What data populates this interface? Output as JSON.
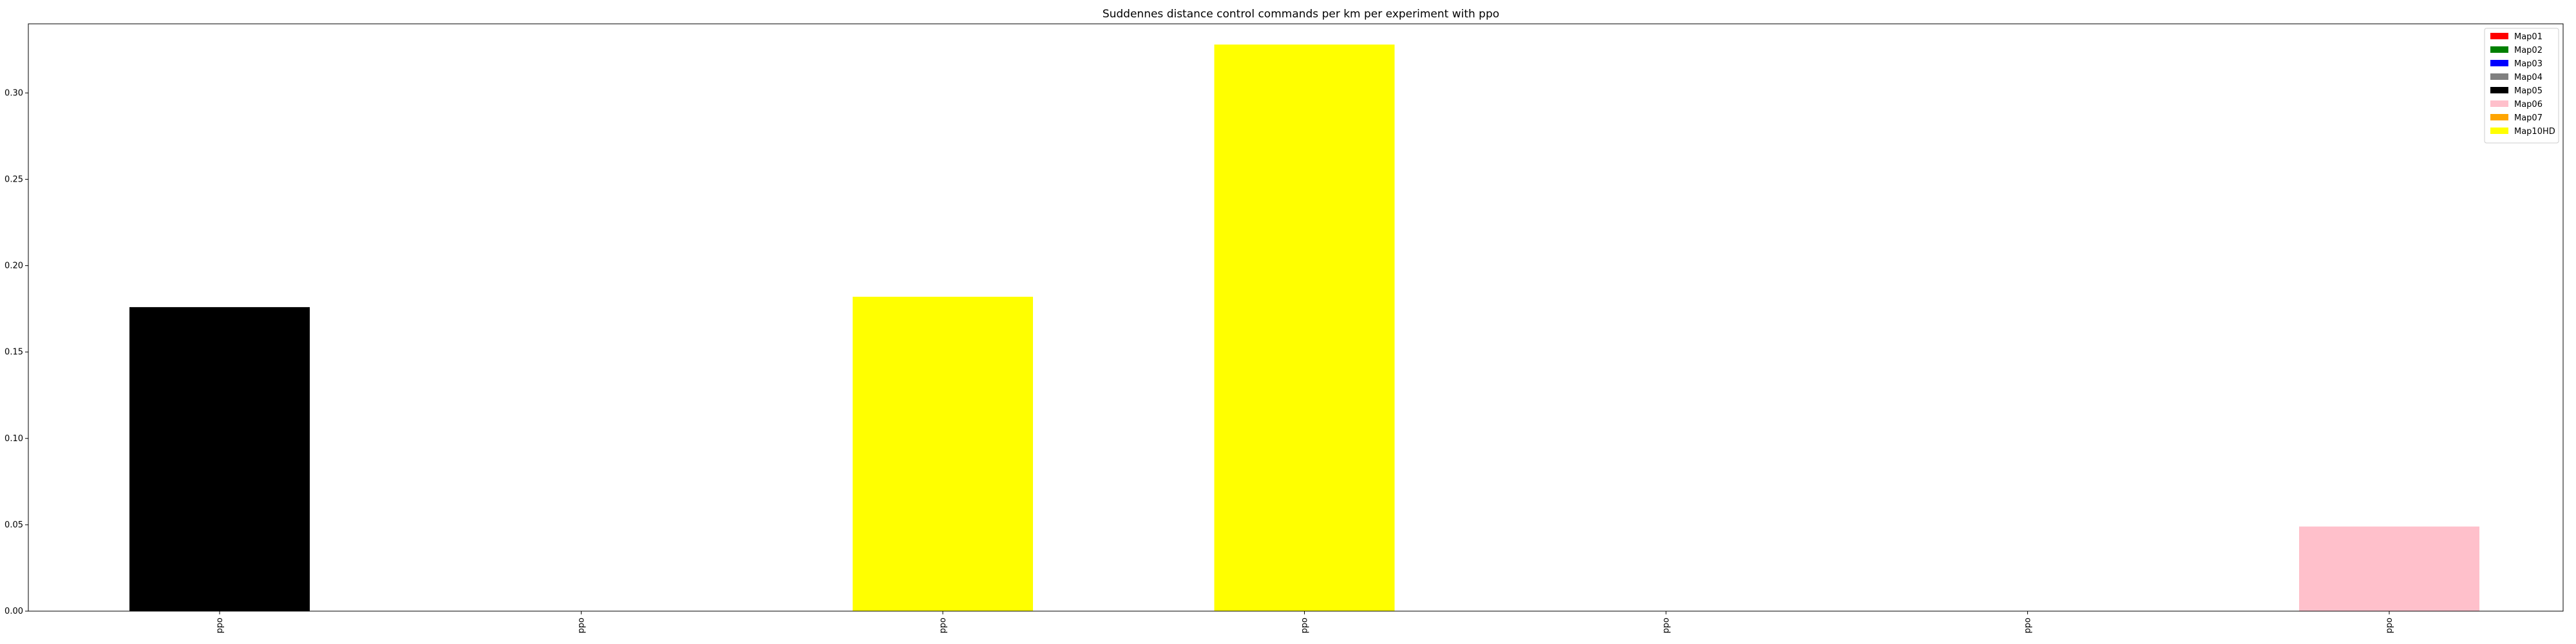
{
  "chart_data": {
    "type": "bar",
    "title": "Suddennes distance control commands per km per experiment with ppo",
    "xlabel": "",
    "ylabel": "",
    "ylim": [
      0,
      0.34
    ],
    "yticks": [
      0.0,
      0.05,
      0.1,
      0.15,
      0.2,
      0.25,
      0.3
    ],
    "categories": [
      "ppo",
      "ppo",
      "ppo",
      "ppo",
      "ppo",
      "ppo",
      "ppo"
    ],
    "series": [
      {
        "name": "Map01",
        "color": "#ff0000",
        "values": [
          0,
          0,
          0,
          0,
          0,
          0,
          0
        ]
      },
      {
        "name": "Map02",
        "color": "#008000",
        "values": [
          0,
          0,
          0,
          0,
          0,
          0,
          0
        ]
      },
      {
        "name": "Map03",
        "color": "#0000ff",
        "values": [
          0,
          0,
          0,
          0,
          0,
          0,
          0
        ]
      },
      {
        "name": "Map04",
        "color": "#808080",
        "values": [
          0,
          0,
          0,
          0,
          0,
          0,
          0
        ]
      },
      {
        "name": "Map05",
        "color": "#000000",
        "values": [
          0.176,
          0,
          0,
          0,
          0,
          0,
          0
        ]
      },
      {
        "name": "Map06",
        "color": "#ffc0cb",
        "values": [
          0,
          0,
          0,
          0,
          0,
          0,
          0.049
        ]
      },
      {
        "name": "Map07",
        "color": "#ffa500",
        "values": [
          0,
          0,
          0,
          0,
          0,
          0,
          0
        ]
      },
      {
        "name": "Map10HD",
        "color": "#ffff00",
        "values": [
          0,
          0,
          0.182,
          0.328,
          0,
          0,
          0
        ]
      }
    ],
    "grid": false,
    "legend_position": "top-right"
  }
}
